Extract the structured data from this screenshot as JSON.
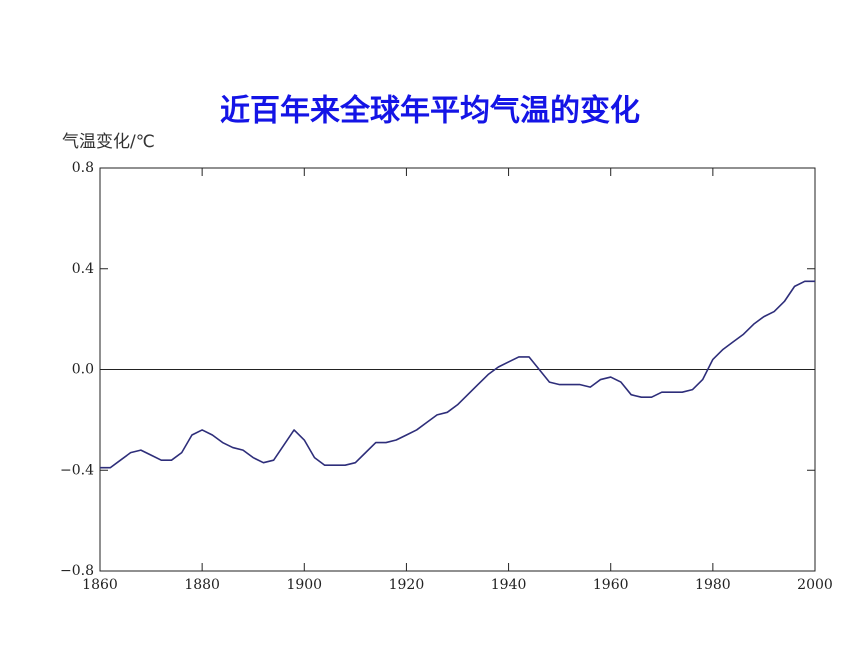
{
  "chart_data": {
    "type": "line",
    "title": "近百年来全球年平均气温的变化",
    "y_label": "气温变化/℃",
    "x": [
      1860,
      1862,
      1864,
      1866,
      1868,
      1870,
      1872,
      1874,
      1876,
      1878,
      1880,
      1882,
      1884,
      1886,
      1888,
      1890,
      1892,
      1894,
      1896,
      1898,
      1900,
      1902,
      1904,
      1906,
      1908,
      1910,
      1912,
      1914,
      1916,
      1918,
      1920,
      1922,
      1924,
      1926,
      1928,
      1930,
      1932,
      1934,
      1936,
      1938,
      1940,
      1942,
      1944,
      1946,
      1948,
      1950,
      1952,
      1954,
      1956,
      1958,
      1960,
      1962,
      1964,
      1966,
      1968,
      1970,
      1972,
      1974,
      1976,
      1978,
      1980,
      1982,
      1984,
      1986,
      1988,
      1990,
      1992,
      1994,
      1996,
      1998,
      2000
    ],
    "values": [
      -0.39,
      -0.39,
      -0.36,
      -0.33,
      -0.32,
      -0.34,
      -0.36,
      -0.36,
      -0.33,
      -0.26,
      -0.24,
      -0.26,
      -0.29,
      -0.31,
      -0.32,
      -0.35,
      -0.37,
      -0.36,
      -0.3,
      -0.24,
      -0.28,
      -0.35,
      -0.38,
      -0.38,
      -0.38,
      -0.37,
      -0.33,
      -0.29,
      -0.29,
      -0.28,
      -0.26,
      -0.24,
      -0.21,
      -0.18,
      -0.17,
      -0.14,
      -0.1,
      -0.06,
      -0.02,
      0.01,
      0.03,
      0.05,
      0.05,
      0.0,
      -0.05,
      -0.06,
      -0.06,
      -0.06,
      -0.07,
      -0.04,
      -0.03,
      -0.05,
      -0.1,
      -0.11,
      -0.11,
      -0.09,
      -0.09,
      -0.09,
      -0.08,
      -0.04,
      0.04,
      0.08,
      0.11,
      0.14,
      0.18,
      0.21,
      0.23,
      0.27,
      0.33,
      0.35,
      0.35
    ],
    "color": "#2e2e7a",
    "xlim": [
      1860,
      2000
    ],
    "xticks": [
      1860,
      1880,
      1900,
      1920,
      1940,
      1960,
      1980,
      2000
    ],
    "ylim": [
      -0.8,
      0.8
    ],
    "yticks": [
      {
        "value": -0.8,
        "label": "−0.8"
      },
      {
        "value": -0.4,
        "label": "−0.4"
      },
      {
        "value": 0,
        "label": "0.0"
      },
      0.4,
      0.8
    ]
  }
}
